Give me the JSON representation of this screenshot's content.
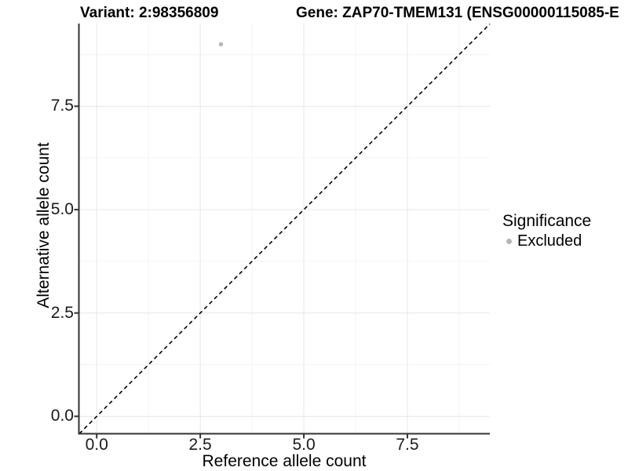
{
  "page": {
    "background": "#ffffff"
  },
  "header": {
    "title_left": "Variant: 2:98356809",
    "title_right": "Gene: ZAP70-TMEM131 (ENSG00000115085-E"
  },
  "chart_data": {
    "type": "scatter",
    "xlabel": "Reference allele count",
    "ylabel": "Alternative allele count",
    "xlim": [
      -0.43,
      9.49
    ],
    "ylim": [
      -0.42,
      9.5
    ],
    "x_ticks": {
      "values": [
        0,
        2.5,
        5,
        7.5
      ],
      "labels": [
        "0.0",
        "2.5",
        "5.0",
        "7.5"
      ]
    },
    "y_ticks": {
      "values": [
        0,
        2.5,
        5,
        7.5
      ],
      "labels": [
        "0.0",
        "2.5",
        "5.0",
        "7.5"
      ]
    },
    "x_minor": [
      1.25,
      3.75,
      6.25,
      8.75
    ],
    "y_minor": [
      1.25,
      3.75,
      6.25,
      8.75
    ],
    "grid": true,
    "series": [
      {
        "name": "Excluded",
        "color": "#b5b5b5",
        "points": [
          {
            "x": 3,
            "y": 9
          }
        ]
      }
    ],
    "reference_line": {
      "slope": 1,
      "intercept": 0,
      "style": "dashed",
      "color": "#000000"
    },
    "legend": {
      "title": "Significance",
      "position": "right",
      "items": [
        {
          "label": "Excluded",
          "color": "#b5b5b5",
          "marker": "circle"
        }
      ]
    }
  },
  "colors": {
    "grid_major": "#e7e7e7",
    "grid_minor": "#f3f3f3",
    "axis_line": "#333333",
    "tick_mark": "#333333",
    "point": "#b5b5b5"
  }
}
